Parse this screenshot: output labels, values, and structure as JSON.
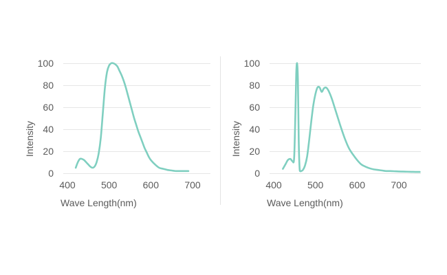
{
  "colors": {
    "curve": "#7fcfc0",
    "grid": "#e6e6e6",
    "text": "#5a5a5a",
    "divider": "#e3e3e3"
  },
  "chart_data": [
    {
      "type": "line",
      "xlabel": "Wave Length(nm)",
      "ylabel": "Intensity",
      "xlim": [
        400,
        700
      ],
      "ylim": [
        0,
        100
      ],
      "xticks": [
        400,
        500,
        600,
        700
      ],
      "yticks": [
        0,
        20,
        40,
        60,
        80,
        100
      ],
      "grid": true,
      "series": [
        {
          "x": [
            420,
            425,
            430,
            435,
            440,
            445,
            450,
            455,
            460,
            465,
            470,
            475,
            480,
            485,
            490,
            495,
            500,
            505,
            510,
            515,
            520,
            525,
            530,
            535,
            540,
            545,
            550,
            555,
            560,
            565,
            570,
            575,
            580,
            585,
            590,
            595,
            600,
            610,
            620,
            630,
            640,
            650,
            660,
            670,
            680,
            690
          ],
          "y": [
            5,
            10,
            13,
            13,
            12,
            10,
            8,
            6,
            5,
            6,
            10,
            18,
            32,
            55,
            78,
            92,
            98,
            100,
            100,
            99,
            97,
            93,
            89,
            84,
            78,
            71,
            64,
            57,
            50,
            44,
            38,
            33,
            28,
            23,
            19,
            15,
            12,
            8,
            5,
            4,
            3,
            2.5,
            2,
            2,
            2,
            2
          ]
        }
      ]
    },
    {
      "type": "line",
      "xlabel": "Wave Length(nm)",
      "ylabel": "Intensity",
      "xlim": [
        400,
        750
      ],
      "ylim": [
        0,
        100
      ],
      "xticks": [
        400,
        500,
        600,
        700
      ],
      "yticks": [
        0,
        20,
        40,
        60,
        80,
        100
      ],
      "grid": true,
      "series": [
        {
          "x": [
            422,
            428,
            434,
            440,
            445,
            449,
            452,
            454,
            456,
            458,
            460,
            462,
            464,
            466,
            470,
            475,
            480,
            485,
            490,
            495,
            500,
            505,
            510,
            515,
            520,
            525,
            530,
            535,
            540,
            545,
            550,
            555,
            560,
            570,
            580,
            590,
            600,
            610,
            620,
            630,
            640,
            650,
            660,
            670,
            680,
            690,
            700,
            710,
            720,
            730,
            740,
            750
          ],
          "y": [
            4,
            8,
            12,
            13,
            11,
            14,
            55,
            90,
            100,
            85,
            30,
            5,
            2,
            2,
            3,
            7,
            15,
            30,
            47,
            62,
            72,
            78,
            78,
            74,
            77,
            78,
            76,
            72,
            67,
            61,
            55,
            49,
            43,
            32,
            23,
            17,
            12,
            8,
            6,
            4.5,
            3.5,
            3,
            2.5,
            2,
            2,
            1.8,
            1.6,
            1.5,
            1.4,
            1.3,
            1.2,
            1.2
          ]
        }
      ]
    }
  ]
}
